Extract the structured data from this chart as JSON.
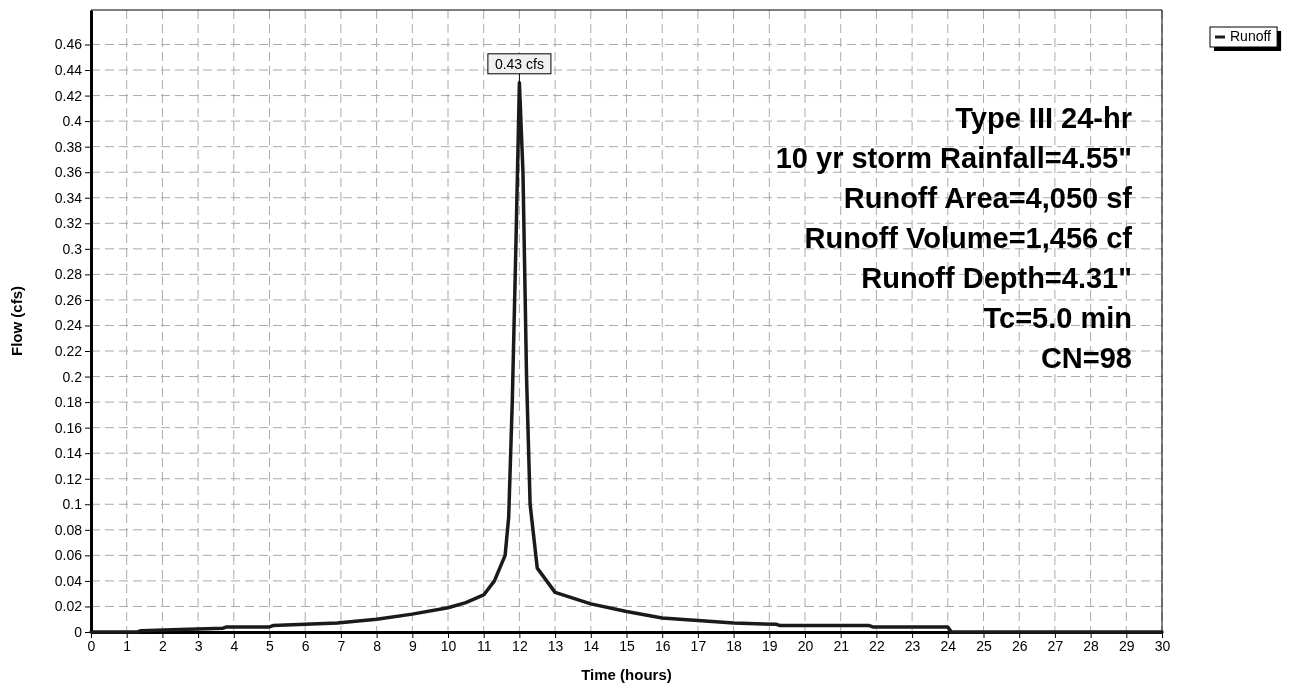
{
  "chart_data": {
    "type": "line",
    "xlabel": "Time  (hours)",
    "ylabel": "Flow  (cfs)",
    "xlim": [
      0,
      30
    ],
    "ylim": [
      0,
      0.487
    ],
    "xticks": [
      0,
      1,
      2,
      3,
      4,
      5,
      6,
      7,
      8,
      9,
      10,
      11,
      12,
      13,
      14,
      15,
      16,
      17,
      18,
      19,
      20,
      21,
      22,
      23,
      24,
      25,
      26,
      27,
      28,
      29,
      30
    ],
    "yticks": [
      0,
      0.02,
      0.04,
      0.06,
      0.08,
      0.1,
      0.12,
      0.14,
      0.16,
      0.18,
      0.2,
      0.22,
      0.24,
      0.26,
      0.28,
      0.3,
      0.32,
      0.34,
      0.36,
      0.38,
      0.4,
      0.42,
      0.44,
      0.46
    ],
    "grid": true,
    "legend": "top right",
    "marker": "none",
    "line_style": "solid",
    "series": [
      {
        "name": "Runoff",
        "color": "#1a1a1a",
        "x": [
          0,
          1.3,
          1.4,
          2.5,
          3.7,
          3.8,
          5,
          5.1,
          6.9,
          8,
          9,
          10,
          10.5,
          11,
          11.3,
          11.6,
          11.7,
          11.8,
          11.9,
          12,
          12.1,
          12.2,
          12.3,
          12.5,
          13,
          14,
          15,
          16,
          17,
          18,
          19.2,
          19.3,
          21.8,
          21.9,
          24,
          24.1,
          30
        ],
        "values": [
          0,
          0,
          0.001,
          0.002,
          0.003,
          0.004,
          0.004,
          0.005,
          0.007,
          0.01,
          0.014,
          0.019,
          0.023,
          0.029,
          0.04,
          0.06,
          0.09,
          0.18,
          0.3,
          0.43,
          0.36,
          0.2,
          0.1,
          0.05,
          0.031,
          0.022,
          0.016,
          0.011,
          0.009,
          0.007,
          0.006,
          0.005,
          0.005,
          0.004,
          0.004,
          0,
          0
        ]
      }
    ],
    "annotations": [
      {
        "text": "0.43 cfs",
        "x": 12,
        "y": 0.43
      },
      "Type III 24-hr",
      "10 yr storm Rainfall=4.55\"",
      "Runoff Area=4,050 sf",
      "Runoff Volume=1,456 cf",
      "Runoff Depth=4.31\"",
      "Tc=5.0 min",
      "CN=98"
    ]
  }
}
